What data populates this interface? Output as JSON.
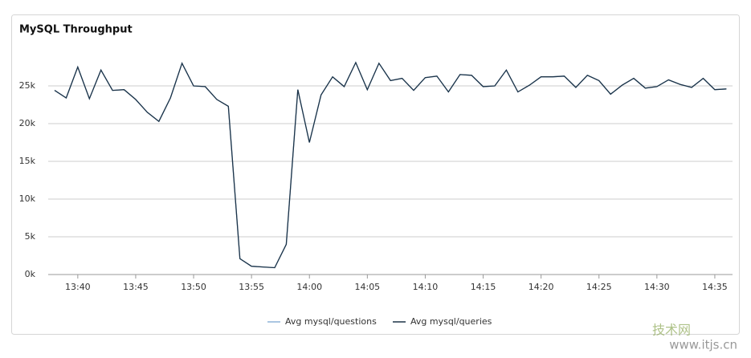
{
  "chart_data": {
    "type": "line",
    "title": "MySQL Throughput",
    "categories": [
      null,
      null,
      "13:40",
      null,
      null,
      null,
      null,
      "13:45",
      null,
      null,
      null,
      null,
      "13:50",
      null,
      null,
      null,
      null,
      "13:55",
      null,
      null,
      null,
      null,
      "14:00",
      null,
      null,
      null,
      null,
      "14:05",
      null,
      null,
      null,
      null,
      "14:10",
      null,
      null,
      null,
      null,
      "14:15",
      null,
      null,
      null,
      null,
      "14:20",
      null,
      null,
      null,
      null,
      "14:25",
      null,
      null,
      null,
      null,
      "14:30",
      null,
      null,
      null,
      null,
      "14:35",
      null
    ],
    "series": [
      {
        "name": "Avg mysql/questions",
        "color": "#8fb3d9",
        "values": [
          24400,
          23400,
          27500,
          23300,
          27100,
          24400,
          24500,
          23200,
          21500,
          20300,
          23400,
          28000,
          25000,
          24900,
          23200,
          22300,
          2100,
          1100,
          1000,
          900,
          4000,
          24500,
          17500,
          23800,
          26200,
          24900,
          28100,
          24500,
          28000,
          25700,
          26000,
          24400,
          26100,
          26300,
          24200,
          26500,
          26400,
          24900,
          25000,
          27100,
          24200,
          25100,
          26200,
          26200,
          26300,
          24800,
          26400,
          25700,
          23900,
          25100,
          26000,
          24700,
          24900,
          25800,
          25200,
          24800,
          26000,
          24500,
          24600
        ]
      },
      {
        "name": "Avg mysql/queries",
        "color": "#1c3347",
        "values": [
          24400,
          23400,
          27500,
          23300,
          27100,
          24400,
          24500,
          23200,
          21500,
          20300,
          23400,
          28000,
          25000,
          24900,
          23200,
          22300,
          2100,
          1100,
          1000,
          900,
          4000,
          24500,
          17500,
          23800,
          26200,
          24900,
          28100,
          24500,
          28000,
          25700,
          26000,
          24400,
          26100,
          26300,
          24200,
          26500,
          26400,
          24900,
          25000,
          27100,
          24200,
          25100,
          26200,
          26200,
          26300,
          24800,
          26400,
          25700,
          23900,
          25100,
          26000,
          24700,
          24900,
          25800,
          25200,
          24800,
          26000,
          24500,
          24600
        ]
      }
    ],
    "ylim": [
      0,
      30000
    ],
    "yticks": [
      {
        "value": 0,
        "label": "0k"
      },
      {
        "value": 5000,
        "label": "5k"
      },
      {
        "value": 10000,
        "label": "10k"
      },
      {
        "value": 15000,
        "label": "15k"
      },
      {
        "value": 20000,
        "label": "20k"
      },
      {
        "value": 25000,
        "label": "25k"
      }
    ],
    "grid": true,
    "legend": "bottom"
  },
  "watermark": {
    "brand": "技术网",
    "url": "www.itjs.cn"
  }
}
